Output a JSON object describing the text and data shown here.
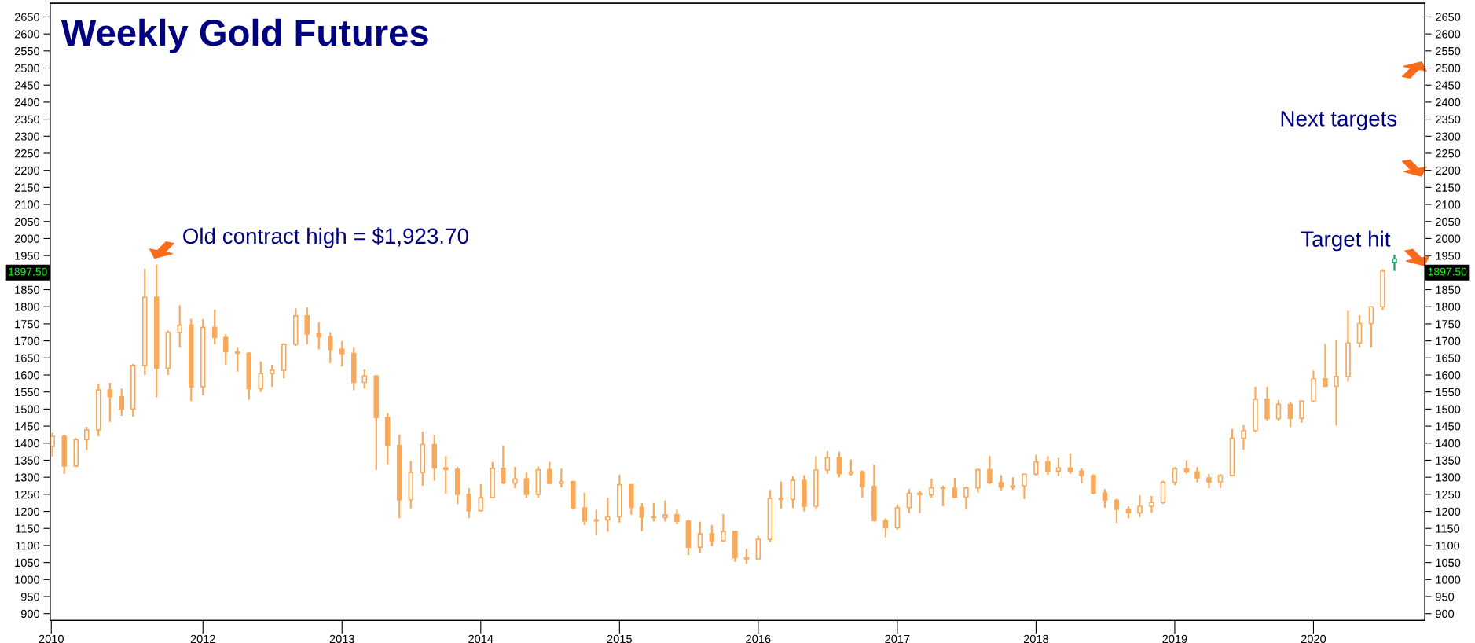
{
  "chart_data": {
    "type": "candlestick",
    "title": "Weekly Gold Futures",
    "annotations": [
      "Old contract high = $1,923.70",
      "Next targets",
      "Target hit",
      "1897.50",
      "1897.50"
    ],
    "xlim": [
      "2010-11-25",
      "2020-10-20"
    ],
    "xticks": [
      {
        "value": "2010-11-28",
        "label": "2010"
      },
      {
        "value": "2012-01-01",
        "label": "2012"
      },
      {
        "value": "2013-01-01",
        "label": "2013"
      },
      {
        "value": "2014-01-01",
        "label": "2014"
      },
      {
        "value": "2015-01-01",
        "label": "2015"
      },
      {
        "value": "2016-01-01",
        "label": "2016"
      },
      {
        "value": "2017-01-01",
        "label": "2017"
      },
      {
        "value": "2018-01-01",
        "label": "2018"
      },
      {
        "value": "2019-01-01",
        "label": "2019"
      },
      {
        "value": "2020-01-01",
        "label": "2020"
      }
    ],
    "ylim": [
      880,
      2690
    ],
    "y2lim": [
      880,
      2690
    ],
    "yticks": [
      900,
      950,
      1000,
      1050,
      1100,
      1150,
      1200,
      1250,
      1300,
      1350,
      1400,
      1450,
      1500,
      1550,
      1600,
      1650,
      1700,
      1750,
      1800,
      1850,
      {
        "value": 1900,
        "label": null
      },
      1950,
      2000,
      2050,
      2100,
      2150,
      2200,
      2250,
      2300,
      2350,
      2400,
      2450,
      2500,
      2550,
      2600,
      2650
    ],
    "y2ticks": [
      900,
      950,
      1000,
      1050,
      1100,
      1150,
      1200,
      1250,
      1300,
      1350,
      1400,
      1450,
      1500,
      1550,
      1600,
      1650,
      1700,
      1750,
      1800,
      1850,
      {
        "value": 1900,
        "label": null
      },
      1950,
      2000,
      2050,
      2100,
      2150,
      2200,
      2250,
      2300,
      2350,
      2400,
      2450,
      2500,
      2550,
      2600,
      2650
    ],
    "grid": false,
    "legend": false,
    "series": [
      {
        "color": "#f9a95a",
        "x": [
          "2010-12",
          "2011-01",
          "2011-02",
          "2011-03",
          "2011-04",
          "2011-05",
          "2011-06",
          "2011-07",
          "2011-08",
          "2011-09",
          "2011-10",
          "2011-11",
          "2011-12",
          "2012-01",
          "2012-02",
          "2012-03",
          "2012-04",
          "2012-05",
          "2012-06",
          "2012-07",
          "2012-08",
          "2012-09",
          "2012-10",
          "2012-11",
          "2012-12",
          "2013-01",
          "2013-02",
          "2013-03",
          "2013-04",
          "2013-05",
          "2013-06",
          "2013-07",
          "2013-08",
          "2013-09",
          "2013-10",
          "2013-11",
          "2013-12",
          "2014-01",
          "2014-02",
          "2014-03",
          "2014-04",
          "2014-05",
          "2014-06",
          "2014-07",
          "2014-08",
          "2014-09",
          "2014-10",
          "2014-11",
          "2014-12",
          "2015-01",
          "2015-02",
          "2015-03",
          "2015-04",
          "2015-05",
          "2015-06",
          "2015-07",
          "2015-08",
          "2015-09",
          "2015-10",
          "2015-11",
          "2015-12",
          "2016-01",
          "2016-02",
          "2016-03",
          "2016-04",
          "2016-05",
          "2016-06",
          "2016-07",
          "2016-08",
          "2016-09",
          "2016-10",
          "2016-11",
          "2016-12",
          "2017-01",
          "2017-02",
          "2017-03",
          "2017-04",
          "2017-05",
          "2017-06",
          "2017-07",
          "2017-08",
          "2017-09",
          "2017-10",
          "2017-11",
          "2017-12",
          "2018-01",
          "2018-02",
          "2018-03",
          "2018-04",
          "2018-05",
          "2018-06",
          "2018-07",
          "2018-08",
          "2018-09",
          "2018-10",
          "2018-11",
          "2018-12",
          "2019-01",
          "2019-02",
          "2019-03",
          "2019-04",
          "2019-05",
          "2019-06",
          "2019-07",
          "2019-08",
          "2019-09",
          "2019-10",
          "2019-11",
          "2019-12",
          "2020-01",
          "2020-02",
          "2020-03",
          "2020-04",
          "2020-05",
          "2020-06",
          "2020-07"
        ],
        "ohlc": [
          [
            1390,
            1430,
            1360,
            1420
          ],
          [
            1420,
            1425,
            1310,
            1333
          ],
          [
            1333,
            1415,
            1330,
            1410
          ],
          [
            1410,
            1448,
            1380,
            1439
          ],
          [
            1439,
            1575,
            1420,
            1556
          ],
          [
            1556,
            1577,
            1462,
            1536
          ],
          [
            1536,
            1560,
            1480,
            1500
          ],
          [
            1500,
            1632,
            1478,
            1628
          ],
          [
            1628,
            1911,
            1600,
            1828
          ],
          [
            1828,
            1923.7,
            1535,
            1620
          ],
          [
            1620,
            1730,
            1600,
            1725
          ],
          [
            1725,
            1804,
            1680,
            1746
          ],
          [
            1746,
            1765,
            1523,
            1565
          ],
          [
            1565,
            1764,
            1540,
            1740
          ],
          [
            1740,
            1792,
            1690,
            1710
          ],
          [
            1710,
            1720,
            1630,
            1668
          ],
          [
            1668,
            1680,
            1610,
            1664
          ],
          [
            1664,
            1667,
            1527,
            1560
          ],
          [
            1560,
            1640,
            1550,
            1604
          ],
          [
            1604,
            1630,
            1565,
            1614
          ],
          [
            1614,
            1693,
            1590,
            1690
          ],
          [
            1690,
            1795,
            1685,
            1773
          ],
          [
            1773,
            1798,
            1690,
            1720
          ],
          [
            1720,
            1755,
            1675,
            1712
          ],
          [
            1712,
            1725,
            1635,
            1675
          ],
          [
            1675,
            1700,
            1625,
            1663
          ],
          [
            1663,
            1680,
            1555,
            1578
          ],
          [
            1578,
            1616,
            1560,
            1597
          ],
          [
            1597,
            1600,
            1321,
            1475
          ],
          [
            1475,
            1488,
            1338,
            1393
          ],
          [
            1393,
            1425,
            1180,
            1234
          ],
          [
            1234,
            1348,
            1207,
            1314
          ],
          [
            1314,
            1434,
            1275,
            1396
          ],
          [
            1396,
            1424,
            1290,
            1327
          ],
          [
            1327,
            1362,
            1251,
            1323
          ],
          [
            1323,
            1330,
            1221,
            1250
          ],
          [
            1250,
            1268,
            1180,
            1202
          ],
          [
            1202,
            1280,
            1200,
            1240
          ],
          [
            1240,
            1345,
            1238,
            1326
          ],
          [
            1326,
            1392,
            1280,
            1283
          ],
          [
            1283,
            1330,
            1268,
            1295
          ],
          [
            1295,
            1315,
            1240,
            1250
          ],
          [
            1250,
            1332,
            1240,
            1322
          ],
          [
            1322,
            1345,
            1280,
            1282
          ],
          [
            1282,
            1325,
            1270,
            1287
          ],
          [
            1287,
            1290,
            1205,
            1210
          ],
          [
            1210,
            1255,
            1160,
            1172
          ],
          [
            1172,
            1205,
            1131,
            1175
          ],
          [
            1175,
            1240,
            1140,
            1184
          ],
          [
            1184,
            1307,
            1167,
            1278
          ],
          [
            1278,
            1280,
            1190,
            1212
          ],
          [
            1212,
            1224,
            1142,
            1183
          ],
          [
            1183,
            1225,
            1170,
            1182
          ],
          [
            1182,
            1232,
            1170,
            1190
          ],
          [
            1190,
            1205,
            1162,
            1171
          ],
          [
            1171,
            1175,
            1072,
            1095
          ],
          [
            1095,
            1170,
            1077,
            1134
          ],
          [
            1134,
            1160,
            1098,
            1114
          ],
          [
            1114,
            1192,
            1110,
            1141
          ],
          [
            1141,
            1143,
            1052,
            1064
          ],
          [
            1064,
            1090,
            1046,
            1061
          ],
          [
            1061,
            1128,
            1060,
            1118
          ],
          [
            1118,
            1263,
            1110,
            1238
          ],
          [
            1238,
            1287,
            1208,
            1235
          ],
          [
            1235,
            1303,
            1210,
            1291
          ],
          [
            1291,
            1306,
            1200,
            1215
          ],
          [
            1215,
            1362,
            1205,
            1321
          ],
          [
            1321,
            1377,
            1310,
            1357
          ],
          [
            1357,
            1375,
            1300,
            1311
          ],
          [
            1311,
            1352,
            1305,
            1316
          ],
          [
            1316,
            1320,
            1240,
            1273
          ],
          [
            1273,
            1337,
            1170,
            1173
          ],
          [
            1173,
            1180,
            1124,
            1152
          ],
          [
            1152,
            1220,
            1146,
            1211
          ],
          [
            1211,
            1265,
            1195,
            1253
          ],
          [
            1253,
            1262,
            1195,
            1249
          ],
          [
            1249,
            1296,
            1240,
            1269
          ],
          [
            1269,
            1275,
            1215,
            1268
          ],
          [
            1268,
            1298,
            1240,
            1242
          ],
          [
            1242,
            1272,
            1205,
            1269
          ],
          [
            1269,
            1325,
            1255,
            1322
          ],
          [
            1322,
            1362,
            1280,
            1284
          ],
          [
            1284,
            1306,
            1262,
            1271
          ],
          [
            1271,
            1300,
            1263,
            1275
          ],
          [
            1275,
            1310,
            1236,
            1309
          ],
          [
            1309,
            1366,
            1305,
            1345
          ],
          [
            1345,
            1362,
            1307,
            1318
          ],
          [
            1318,
            1356,
            1303,
            1327
          ],
          [
            1327,
            1370,
            1310,
            1318
          ],
          [
            1318,
            1326,
            1282,
            1305
          ],
          [
            1305,
            1309,
            1250,
            1254
          ],
          [
            1254,
            1265,
            1211,
            1233
          ],
          [
            1233,
            1237,
            1167,
            1206
          ],
          [
            1206,
            1215,
            1180,
            1196
          ],
          [
            1196,
            1247,
            1183,
            1215
          ],
          [
            1215,
            1245,
            1196,
            1226
          ],
          [
            1226,
            1290,
            1222,
            1285
          ],
          [
            1285,
            1330,
            1277,
            1325
          ],
          [
            1325,
            1350,
            1310,
            1316
          ],
          [
            1316,
            1330,
            1285,
            1298
          ],
          [
            1298,
            1310,
            1268,
            1286
          ],
          [
            1286,
            1310,
            1268,
            1305
          ],
          [
            1305,
            1442,
            1302,
            1414
          ],
          [
            1414,
            1453,
            1381,
            1437
          ],
          [
            1437,
            1566,
            1433,
            1529
          ],
          [
            1529,
            1566,
            1465,
            1472
          ],
          [
            1472,
            1527,
            1465,
            1514
          ],
          [
            1514,
            1520,
            1447,
            1473
          ],
          [
            1473,
            1525,
            1460,
            1523
          ],
          [
            1523,
            1613,
            1520,
            1589
          ],
          [
            1589,
            1691,
            1565,
            1567
          ],
          [
            1567,
            1704,
            1451,
            1596
          ],
          [
            1596,
            1788,
            1580,
            1694
          ],
          [
            1694,
            1775,
            1680,
            1751
          ],
          [
            1751,
            1800,
            1680,
            1800
          ],
          [
            1800,
            1910,
            1790,
            1905
          ]
        ]
      },
      {
        "color": "#1aa060",
        "x": [
          "2020-08"
        ],
        "ohlc": [
          [
            1930,
            1953,
            1905,
            1940
          ]
        ]
      }
    ]
  }
}
